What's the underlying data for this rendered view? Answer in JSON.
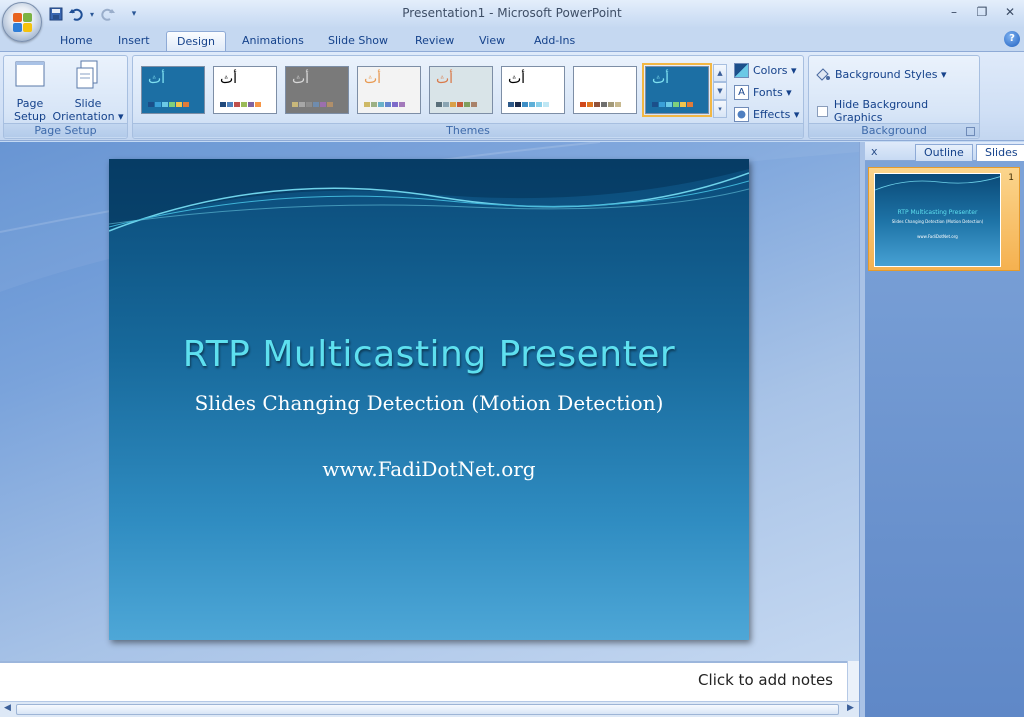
{
  "window": {
    "title": "Presentation1 - Microsoft PowerPoint",
    "controls": {
      "minimize": "–",
      "restore": "❐",
      "close": "✕"
    }
  },
  "quick_access": {
    "items": [
      {
        "name": "save-icon",
        "glyph": "💾"
      },
      {
        "name": "undo-icon",
        "glyph": "↶"
      },
      {
        "name": "undo-dropdown-icon",
        "glyph": "▾"
      },
      {
        "name": "redo-icon",
        "glyph": "↻"
      },
      {
        "name": "customize-qat-icon",
        "glyph": "▾"
      }
    ]
  },
  "tabs": [
    {
      "label": "Home",
      "active": false
    },
    {
      "label": "Insert",
      "active": false
    },
    {
      "label": "Design",
      "active": true
    },
    {
      "label": "Animations",
      "active": false
    },
    {
      "label": "Slide Show",
      "active": false
    },
    {
      "label": "Review",
      "active": false
    },
    {
      "label": "View",
      "active": false
    },
    {
      "label": "Add-Ins",
      "active": false
    }
  ],
  "help_glyph": "?",
  "ribbon": {
    "page_setup": {
      "label": "Page Setup",
      "page_setup_btn": {
        "line1": "Page",
        "line2": "Setup"
      },
      "orientation_btn": {
        "line1": "Slide",
        "line2": "Orientation ▾"
      }
    },
    "themes": {
      "label": "Themes",
      "thumb_glyph": "أث",
      "items": [
        {
          "name": "theme-flow-blue",
          "bg": "#1c6fa4",
          "glyph_color": "#7fe0f0",
          "swatches": [
            "#1b4f8a",
            "#3aa0d8",
            "#6bc9e6",
            "#7fd07c",
            "#f0c44d",
            "#e07b39"
          ]
        },
        {
          "name": "theme-office",
          "bg": "#ffffff",
          "glyph_color": "#000000",
          "swatches": [
            "#1f497d",
            "#4f81bd",
            "#c0504d",
            "#9bbb59",
            "#8064a2",
            "#f79646"
          ]
        },
        {
          "name": "theme-gray",
          "bg": "#7a7a7a",
          "glyph_color": "#d8d8d8",
          "swatches": [
            "#c8b77a",
            "#a7a7a7",
            "#8d8d8d",
            "#6f8cae",
            "#9b6fae",
            "#b08f6a"
          ]
        },
        {
          "name": "theme-apex",
          "bg": "#f3f3f3",
          "glyph_color": "#e89a52",
          "swatches": [
            "#ceb966",
            "#9cb084",
            "#6bb1c9",
            "#6585cf",
            "#7e6bc9",
            "#a379bb"
          ]
        },
        {
          "name": "theme-aspect",
          "bg": "#d9e4e8",
          "glyph_color": "#d97a4a",
          "swatches": [
            "#5a6f7a",
            "#8ba5b3",
            "#d9a049",
            "#c45a3a",
            "#7f9f5f",
            "#a9826a"
          ]
        },
        {
          "name": "theme-civic",
          "bg": "#ffffff",
          "glyph_color": "#000000",
          "swatches": [
            "#2f5a8a",
            "#1b2a4a",
            "#3f8fc6",
            "#5fb0d8",
            "#8ad0ea",
            "#bfe7f4"
          ]
        },
        {
          "name": "theme-concourse",
          "bg": "#ffffff",
          "glyph_color": "#ffffff",
          "swatches": [
            "#d1491b",
            "#e0761f",
            "#92523a",
            "#6f6f6f",
            "#a49a7a",
            "#c8b98f"
          ]
        },
        {
          "name": "theme-flow-selected",
          "bg": "#1c6fa4",
          "glyph_color": "#7fe0f0",
          "swatches": [
            "#1b4f8a",
            "#3aa0d8",
            "#6bc9e6",
            "#7fd07c",
            "#f0c44d",
            "#e07b39"
          ]
        }
      ],
      "colors_label": "Colors ▾",
      "fonts_label": "Fonts ▾",
      "effects_label": "Effects ▾"
    },
    "background": {
      "label": "Background",
      "styles_label": "Background Styles ▾",
      "hide_label": "Hide Background Graphics"
    }
  },
  "slide": {
    "title": "RTP Multicasting Presenter",
    "subtitle": "Slides Changing Detection (Motion Detection)",
    "url": "www.FadiDotNet.org"
  },
  "notes": {
    "placeholder": "Click to add notes"
  },
  "side_panel": {
    "close_glyph": "x",
    "tabs": [
      {
        "label": "Outline",
        "active": false
      },
      {
        "label": "Slides",
        "active": true
      }
    ],
    "thumb_number": "1"
  },
  "colors": {
    "accent": "#f2b744",
    "ribbon_bg": "#cfdff5",
    "slide_title": "#5ee0ef"
  }
}
